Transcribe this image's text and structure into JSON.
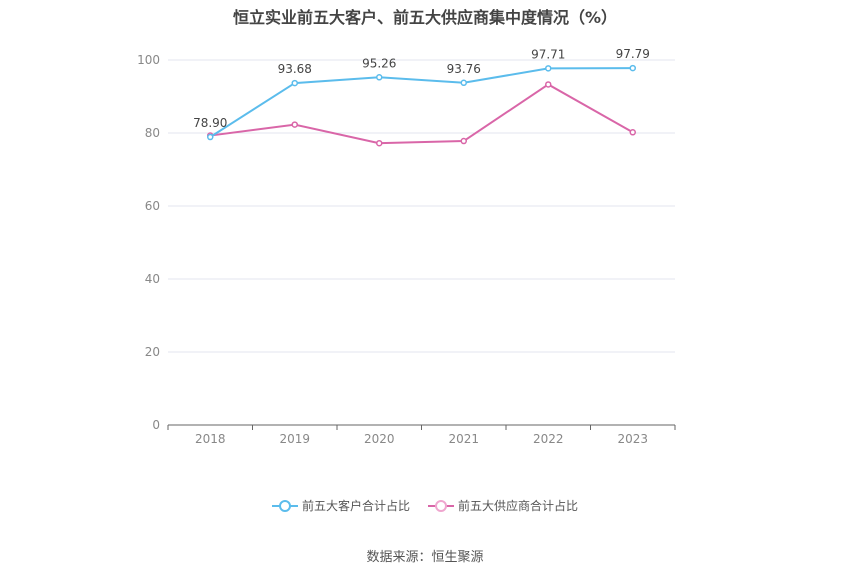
{
  "title": "恒立实业前五大客户、前五大供应商集中度情况（%）",
  "source": "数据来源：恒生聚源",
  "colors": {
    "customers": "#5bbcec",
    "suppliers": "#d966a8",
    "grid": "#e3e6ef",
    "axis": "#888888"
  },
  "chart_data": {
    "type": "line",
    "title": "恒立实业前五大客户、前五大供应商集中度情况（%）",
    "categories": [
      "2018",
      "2019",
      "2020",
      "2021",
      "2022",
      "2023"
    ],
    "ylim": [
      0,
      100
    ],
    "yticks": [
      0,
      20,
      40,
      60,
      80,
      100
    ],
    "grid": true,
    "legend_position": "bottom",
    "series": [
      {
        "name": "前五大客户合计占比",
        "values": [
          78.9,
          93.68,
          95.26,
          93.76,
          97.71,
          97.79
        ],
        "labels": [
          "78.90",
          "93.68",
          "95.26",
          "93.76",
          "97.71",
          "97.79"
        ]
      },
      {
        "name": "前五大供应商合计占比",
        "values": [
          79.3,
          82.3,
          77.2,
          77.8,
          93.3,
          80.2
        ]
      }
    ]
  }
}
